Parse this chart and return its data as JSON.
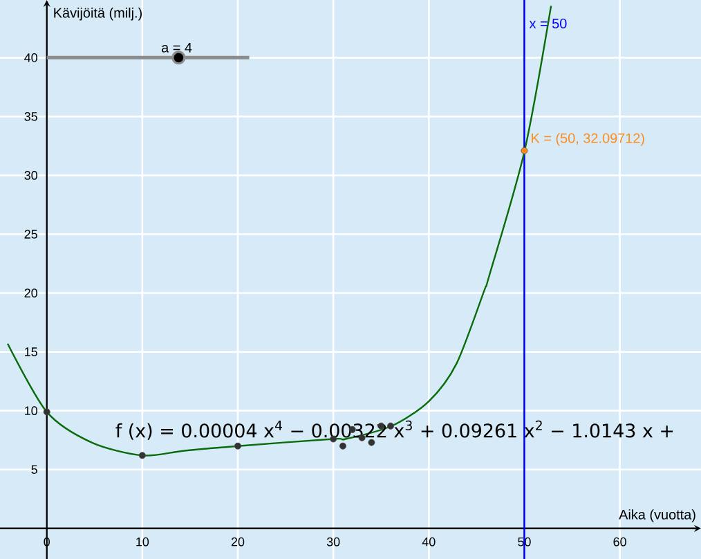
{
  "chart_data": {
    "type": "scatter",
    "xlabel": "Aika (vuotta)",
    "ylabel": "Kävijöitä (milj.)",
    "xlim": [
      -4.9,
      68.5
    ],
    "ylim": [
      -2.6,
      44.9
    ],
    "xticks": [
      0,
      10,
      20,
      30,
      40,
      50,
      60
    ],
    "yticks": [
      5,
      10,
      15,
      20,
      25,
      30,
      35,
      40
    ],
    "grid": true,
    "series": [
      {
        "color": "#333333",
        "x": [
          0,
          10,
          20,
          30,
          31,
          32,
          33,
          34,
          35,
          36
        ],
        "values": [
          9.9,
          6.2,
          7.0,
          7.6,
          7.0,
          8.4,
          7.7,
          7.3,
          8.7,
          8.7
        ]
      },
      {
        "type": "line",
        "color": "#0a6b0a",
        "x": [
          -4.1,
          0,
          4.7,
          10,
          14.4,
          20,
          30,
          31.3,
          36.1,
          40,
          42.9,
          45.8,
          46.3,
          50,
          52.8
        ],
        "values": [
          15.7,
          9.9,
          7.3,
          6.2,
          6.6,
          7.0,
          7.6,
          7.6,
          8.7,
          10.8,
          14,
          20.2,
          21.4,
          32.0,
          44.4
        ]
      },
      {
        "color": "#ff8c1a",
        "x": [
          50
        ],
        "values": [
          32.09712
        ]
      }
    ],
    "ref_lines": [
      {
        "axis": "x",
        "value": 50,
        "label": "x = 50",
        "color": "#0000ff"
      }
    ],
    "annotations": [
      "f (x) = 0.00004 x$^{4}$ − 0.00322 x$^{3}$ + 0.09261 x$^{2}$ − 1.0143 x +",
      "a = 4",
      {
        "text": "K = (50, 32.09712)",
        "x": 50,
        "y": 32.09712
      }
    ]
  }
}
